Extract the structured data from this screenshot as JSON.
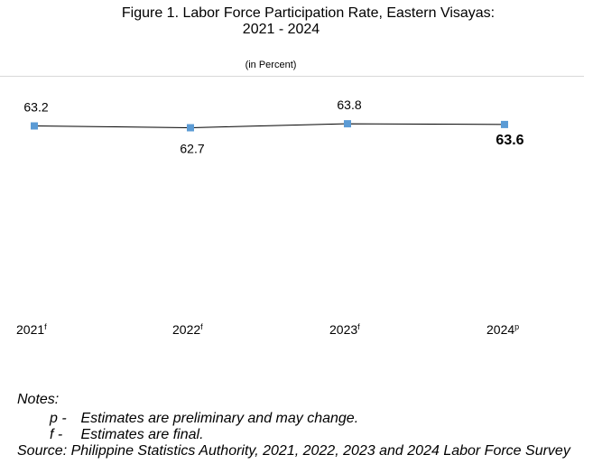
{
  "title_line_1": "Figure 1. Labor Force Participation Rate, Eastern Visayas:",
  "title_line_2": "2021 - 2024",
  "subtitle": "(in Percent)",
  "chart_data": {
    "type": "line",
    "title": "Figure 1. Labor Force Participation Rate, Eastern Visayas: 2021 - 2024",
    "subtitle": "(in Percent)",
    "categories": [
      "2021",
      "2022",
      "2023",
      "2024"
    ],
    "category_superscripts": [
      "f",
      "f",
      "f",
      "p"
    ],
    "series": [
      {
        "values": [
          63.2,
          62.7,
          63.8,
          63.6
        ],
        "data_labels": [
          "63.2",
          "62.7",
          "63.8",
          "63.6"
        ],
        "line_color": "#000000",
        "marker_color": "#5b9bd5",
        "marker": "square"
      }
    ],
    "highlighted_label_index": 3,
    "grid": false,
    "legend": "none"
  },
  "notes": {
    "heading": "Notes:",
    "items": [
      {
        "key": "p -",
        "text": "Estimates are preliminary and may change."
      },
      {
        "key": "f -",
        "text": "Estimates are final."
      }
    ],
    "source": "Source: Philippine Statistics Authority, 2021, 2022, 2023 and 2024 Labor Force Survey"
  }
}
